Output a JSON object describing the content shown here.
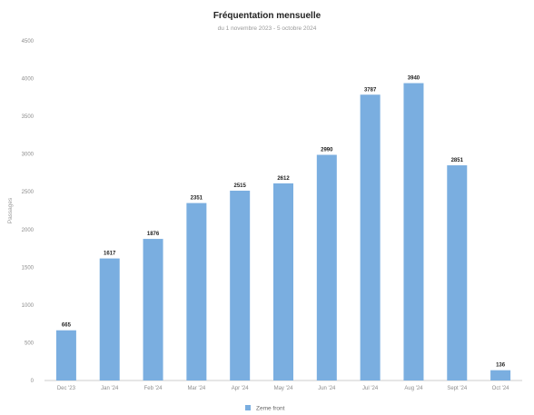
{
  "chart_data": {
    "type": "bar",
    "title": "Fréquentation mensuelle",
    "subtitle": "du 1 novembre 2023 - 5 octobre 2024",
    "ylabel": "Passages",
    "xlabel": "",
    "ylim": [
      0,
      4500
    ],
    "yticks": [
      0,
      500,
      1000,
      1500,
      2000,
      2500,
      3000,
      3500,
      4000,
      4500
    ],
    "grid": false,
    "legend_position": "bottom",
    "color": "#7aaee0",
    "categories": [
      "Dec '23",
      "Jan '24",
      "Feb '24",
      "Mar '24",
      "Apr '24",
      "May '24",
      "Jun '24",
      "Jul '24",
      "Aug '24",
      "Sept '24",
      "Oct '24"
    ],
    "series": [
      {
        "name": "Zeme front",
        "values": [
          665,
          1617,
          1876,
          2351,
          2515,
          2612,
          2990,
          3787,
          3940,
          2851,
          136
        ],
        "labels": [
          "665",
          "1617",
          "1876",
          "2351",
          "2515",
          "2612",
          "2990",
          "3787",
          "3940",
          "2851",
          "136"
        ]
      }
    ]
  }
}
